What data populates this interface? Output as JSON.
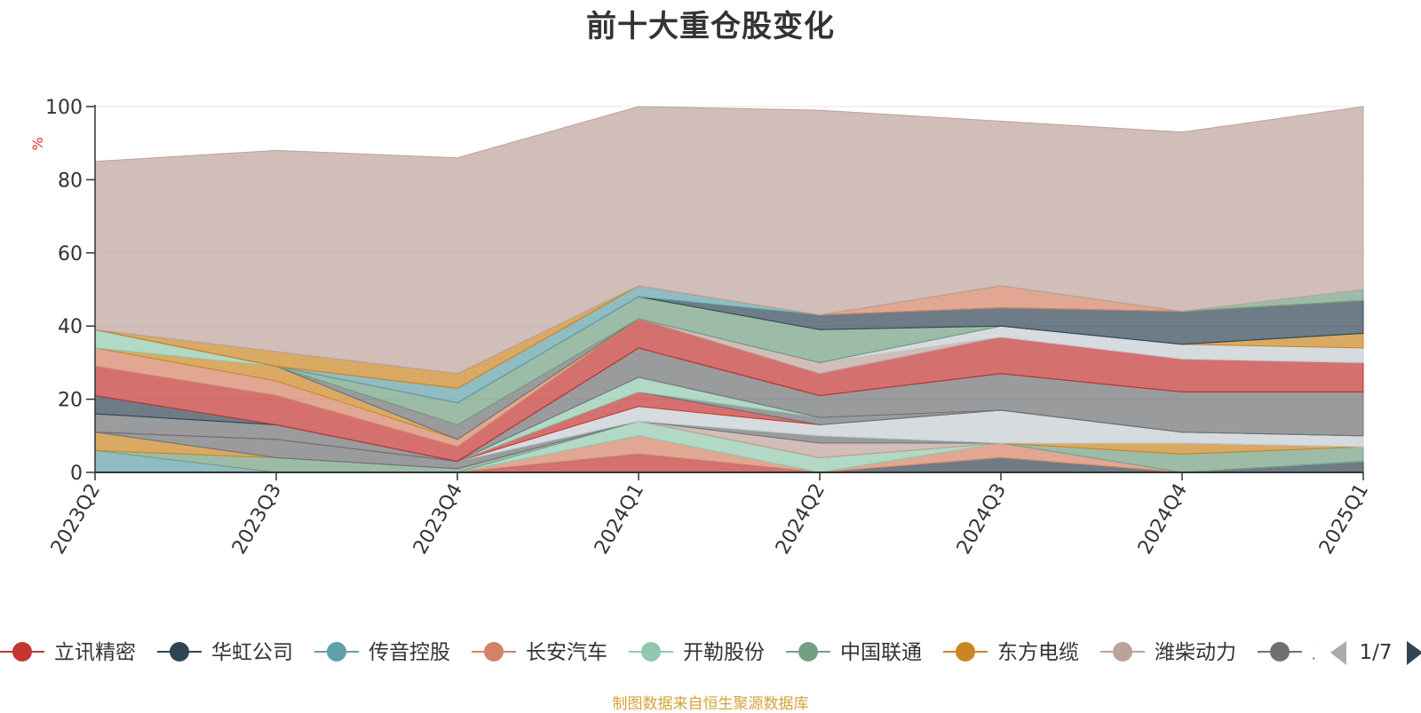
{
  "chart_data": {
    "type": "area",
    "title": "前十大重仓股变化",
    "ylabel": "%",
    "ylim": [
      0,
      100
    ],
    "yticks": [
      "0",
      "20",
      "40",
      "60",
      "80",
      "100"
    ],
    "categories": [
      "2023Q2",
      "2023Q3",
      "2023Q4",
      "2024Q1",
      "2024Q2",
      "2024Q3",
      "2024Q4",
      "2025Q1"
    ],
    "grid": true,
    "legend_position": "bottom",
    "series": [
      {
        "name": "立讯精密",
        "color": "#c23531",
        "values": [
          0,
          0,
          0,
          5,
          0,
          0,
          0,
          0
        ]
      },
      {
        "name": "华虹公司",
        "color": "#2f4554",
        "values": [
          0,
          0,
          0,
          0,
          0,
          4,
          0,
          3
        ]
      },
      {
        "name": "传音控股",
        "color": "#61a0a8",
        "values": [
          6,
          0,
          0,
          0,
          0,
          0,
          0,
          0
        ]
      },
      {
        "name": "长安汽车",
        "color": "#d48265",
        "values": [
          0,
          0,
          0,
          5,
          0,
          4,
          0,
          0
        ]
      },
      {
        "name": "开勒股份",
        "color": "#91c7ae",
        "values": [
          0,
          0,
          0,
          4,
          4,
          0,
          0,
          0
        ]
      },
      {
        "name": "中国联通",
        "color": "#749f83",
        "values": [
          0,
          4,
          1,
          0,
          0,
          0,
          5,
          4
        ]
      },
      {
        "name": "东方电缆",
        "color": "#ca8622",
        "values": [
          5,
          0,
          0,
          0,
          0,
          0,
          3,
          0
        ]
      },
      {
        "name": "潍柴动力",
        "color": "#bda29a",
        "values": [
          0,
          0,
          0,
          0,
          4,
          0,
          0,
          0
        ]
      },
      {
        "name": "三",
        "color": "#6e7074",
        "values": [
          0,
          5,
          2,
          0,
          2,
          0,
          0,
          0
        ]
      },
      {
        "name": "",
        "color": "#546570",
        "values": [
          0,
          0,
          0,
          0,
          0,
          0,
          0,
          0
        ]
      },
      {
        "name": "",
        "color": "#c4ccd3",
        "values": [
          0,
          0,
          0,
          4,
          3,
          9,
          3,
          3
        ]
      },
      {
        "name": "",
        "color": "#c23531",
        "values": [
          0,
          0,
          0,
          4,
          0,
          0,
          0,
          0
        ]
      },
      {
        "name": "",
        "color": "#6e7074",
        "values": [
          5,
          4,
          0,
          0,
          2,
          0,
          0,
          0
        ]
      },
      {
        "name": "",
        "color": "#91c7ae",
        "values": [
          0,
          0,
          0,
          4,
          0,
          0,
          0,
          0
        ]
      },
      {
        "name": "",
        "color": "#6e7074",
        "values": [
          0,
          0,
          0,
          8,
          6,
          10,
          11,
          12
        ]
      },
      {
        "name": "",
        "color": "#2f4554",
        "values": [
          5,
          0,
          0,
          0,
          0,
          0,
          0,
          0
        ]
      },
      {
        "name": "",
        "color": "#c23531",
        "values": [
          8,
          8,
          4,
          8,
          6,
          10,
          9,
          8
        ]
      },
      {
        "name": "",
        "color": "#bda29a",
        "values": [
          0,
          0,
          0,
          0,
          3,
          0,
          0,
          0
        ]
      },
      {
        "name": "",
        "color": "#d48265",
        "values": [
          5,
          4,
          2,
          0,
          0,
          0,
          0,
          0
        ]
      },
      {
        "name": "",
        "color": "#c4ccd3",
        "values": [
          0,
          0,
          0,
          0,
          0,
          3,
          4,
          4
        ]
      },
      {
        "name": "",
        "color": "#ca8622",
        "values": [
          0,
          4,
          0,
          0,
          0,
          0,
          0,
          4
        ]
      },
      {
        "name": "",
        "color": "#91c7ae",
        "values": [
          5,
          0,
          0,
          0,
          0,
          0,
          0,
          0
        ]
      },
      {
        "name": "",
        "color": "#6e7074",
        "values": [
          0,
          0,
          4,
          0,
          0,
          0,
          0,
          0
        ]
      },
      {
        "name": "",
        "color": "#749f83",
        "values": [
          0,
          0,
          6,
          6,
          9,
          0,
          0,
          0
        ]
      },
      {
        "name": "",
        "color": "#2f4554",
        "values": [
          0,
          0,
          0,
          0,
          4,
          5,
          9,
          9
        ]
      },
      {
        "name": "",
        "color": "#61a0a8",
        "values": [
          0,
          0,
          4,
          3,
          0,
          0,
          0,
          0
        ]
      },
      {
        "name": "",
        "color": "#d48265",
        "values": [
          0,
          0,
          0,
          0,
          0,
          6,
          0,
          0
        ]
      },
      {
        "name": "",
        "color": "#ca8622",
        "values": [
          0,
          4,
          4,
          0,
          0,
          0,
          0,
          0
        ]
      },
      {
        "name": "",
        "color": "#749f83",
        "values": [
          0,
          0,
          0,
          0,
          0,
          0,
          0,
          3
        ]
      },
      {
        "name": "",
        "color": "#bda29a",
        "values": [
          46,
          55,
          59,
          49,
          56,
          45,
          49,
          50
        ]
      }
    ]
  },
  "legend": {
    "items": [
      {
        "name": "立讯精密",
        "color": "#c23531"
      },
      {
        "name": "华虹公司",
        "color": "#2f4554"
      },
      {
        "name": "传音控股",
        "color": "#61a0a8"
      },
      {
        "name": "长安汽车",
        "color": "#d48265"
      },
      {
        "name": "开勒股份",
        "color": "#91c7ae"
      },
      {
        "name": "中国联通",
        "color": "#749f83"
      },
      {
        "name": "东方电缆",
        "color": "#ca8622"
      },
      {
        "name": "潍柴动力",
        "color": "#bda29a"
      },
      {
        "name": "三",
        "color": "#6e7074"
      }
    ],
    "page_text": "1/7",
    "prev_icon": "triangle-left-icon",
    "next_icon": "triangle-right-icon"
  },
  "source_note": "制图数据来自恒生聚源数据库"
}
